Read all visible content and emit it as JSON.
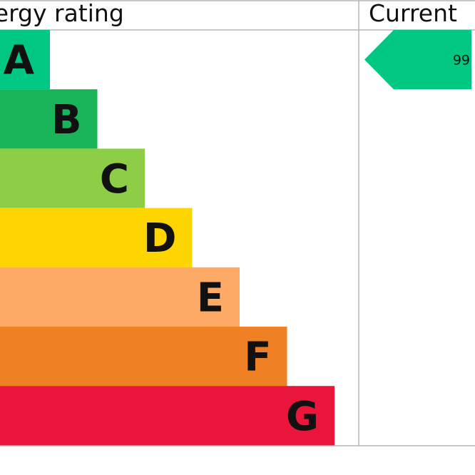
{
  "chart_data": {
    "type": "bar",
    "title": "Energy rating",
    "columns": [
      "Energy rating",
      "Current"
    ],
    "categories": [
      "A",
      "B",
      "C",
      "D",
      "E",
      "F",
      "G"
    ],
    "band_colors": [
      "#00c781",
      "#19b459",
      "#8dce46",
      "#ffd500",
      "#fcaa65",
      "#ef8023",
      "#e9153b"
    ],
    "current": {
      "rating": "A",
      "score": "99"
    }
  }
}
